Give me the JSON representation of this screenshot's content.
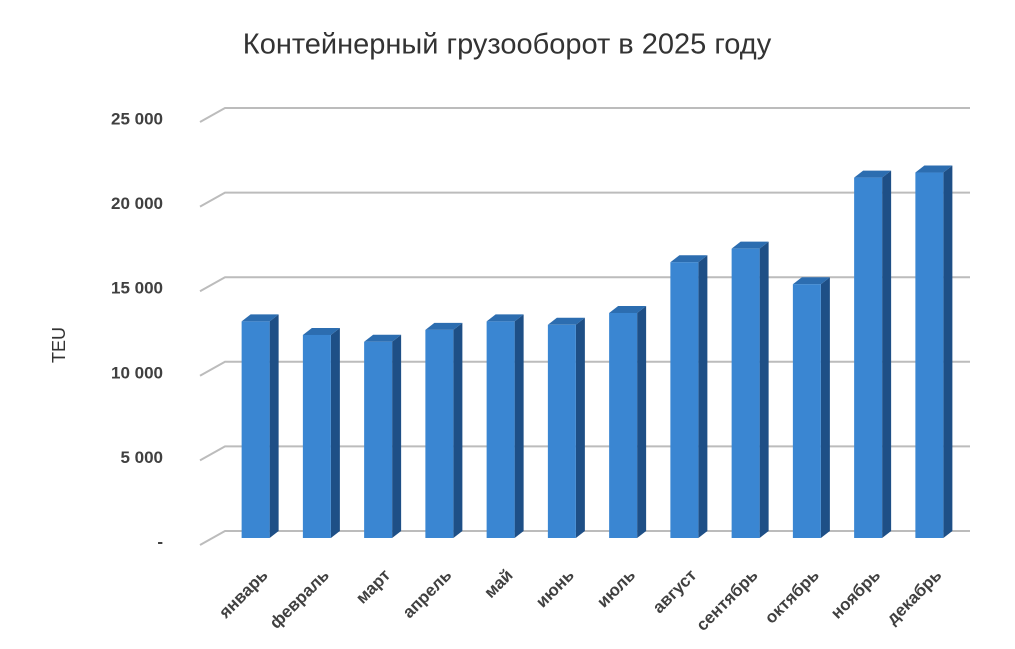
{
  "chart_data": {
    "type": "bar",
    "title": "Контейнерный  грузооборот  в 2025 году",
    "y_label": "TEU",
    "categories": [
      "январь",
      "февраль",
      "март",
      "апрель",
      "май",
      "июнь",
      "июль",
      "август",
      "сентябрь",
      "октябрь",
      "ноябрь",
      "декабрь"
    ],
    "values": [
      12800,
      12000,
      11600,
      12300,
      12800,
      12600,
      13300,
      16300,
      17100,
      15000,
      21300,
      21600
    ],
    "color": "#3a86d2",
    "ylim": [
      0,
      25000
    ],
    "yticks": [
      {
        "value": 0,
        "label": "-"
      },
      {
        "value": 5000,
        "label": "5 000"
      },
      {
        "value": 10000,
        "label": "10 000"
      },
      {
        "value": 15000,
        "label": "15 000"
      },
      {
        "value": 20000,
        "label": "20 000"
      },
      {
        "value": 25000,
        "label": "25 000"
      }
    ],
    "grid": true
  }
}
